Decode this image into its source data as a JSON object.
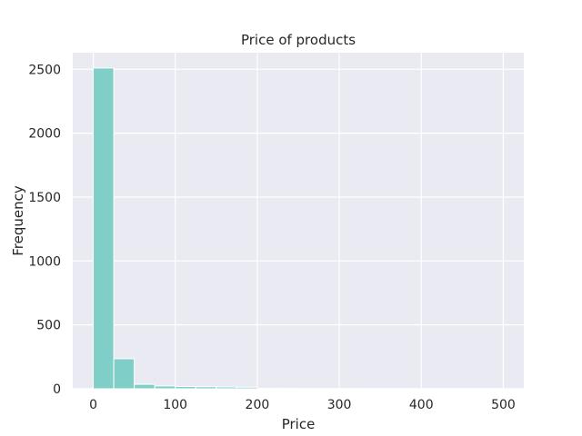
{
  "chart_data": {
    "type": "bar",
    "title": "Price of products",
    "xlabel": "Price",
    "ylabel": "Frequency",
    "bin_edges": [
      0,
      25,
      50,
      75,
      100,
      125,
      150,
      175,
      200,
      225,
      250,
      275,
      300,
      325,
      350,
      375,
      400,
      425,
      450,
      475,
      500
    ],
    "values": [
      2510,
      235,
      35,
      22,
      18,
      16,
      14,
      12,
      3,
      3,
      2,
      2,
      2,
      1,
      1,
      1,
      1,
      1,
      1,
      1
    ],
    "xlim": [
      -25,
      525
    ],
    "ylim": [
      0,
      2630
    ],
    "xticks": [
      0,
      100,
      200,
      300,
      400,
      500
    ],
    "yticks": [
      0,
      500,
      1000,
      1500,
      2000,
      2500
    ],
    "grid": true,
    "colors": {
      "bar": "#7fcfc8",
      "bar_edge": "#ffffff",
      "background": "#eaeaf2",
      "grid": "#ffffff"
    }
  }
}
